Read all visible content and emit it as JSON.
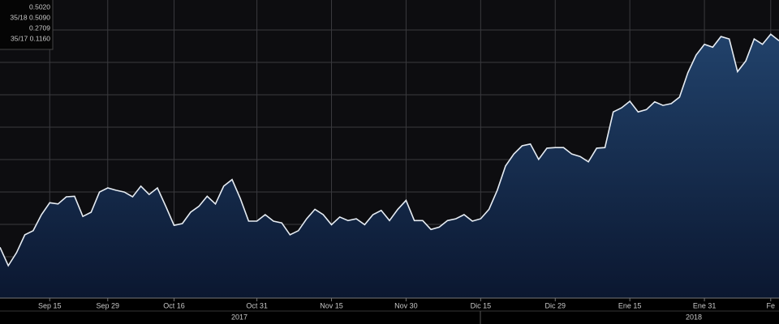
{
  "chart_data": {
    "type": "area",
    "legend_lines": [
      "0.5020",
      "35/18 0.5090",
      "0.2709",
      "35/17 0.1160"
    ],
    "years": [
      "2017",
      "2018"
    ],
    "categories": [
      null,
      null,
      null,
      null,
      null,
      null,
      "Sep 15",
      null,
      null,
      null,
      null,
      null,
      null,
      "Sep 29",
      null,
      null,
      null,
      null,
      null,
      null,
      null,
      "Oct 16",
      null,
      null,
      null,
      null,
      null,
      null,
      null,
      null,
      null,
      "Oct 31",
      null,
      null,
      null,
      null,
      null,
      null,
      null,
      null,
      "Nov 15",
      null,
      null,
      null,
      null,
      null,
      null,
      null,
      null,
      "Nov 30",
      null,
      null,
      null,
      null,
      null,
      null,
      null,
      null,
      "Dic 15",
      null,
      null,
      null,
      null,
      null,
      null,
      null,
      null,
      "Dic 29",
      null,
      null,
      null,
      null,
      null,
      null,
      null,
      null,
      "Ene 15",
      null,
      null,
      null,
      null,
      null,
      null,
      null,
      null,
      "Ene 31",
      null,
      null,
      null,
      null,
      null,
      null,
      null,
      "Fe",
      null
    ],
    "values": [
      0.147,
      0.116,
      0.138,
      0.168,
      0.175,
      0.202,
      0.222,
      0.22,
      0.232,
      0.233,
      0.199,
      0.206,
      0.24,
      0.247,
      0.243,
      0.24,
      0.232,
      0.25,
      0.236,
      0.247,
      0.216,
      0.184,
      0.187,
      0.206,
      0.216,
      0.233,
      0.22,
      0.25,
      0.261,
      0.229,
      0.191,
      0.191,
      0.202,
      0.191,
      0.188,
      0.168,
      0.175,
      0.195,
      0.211,
      0.202,
      0.185,
      0.198,
      0.192,
      0.195,
      0.185,
      0.202,
      0.209,
      0.192,
      0.211,
      0.226,
      0.192,
      0.192,
      0.177,
      0.181,
      0.192,
      0.195,
      0.202,
      0.191,
      0.195,
      0.211,
      0.243,
      0.284,
      0.304,
      0.318,
      0.321,
      0.295,
      0.314,
      0.315,
      0.315,
      0.304,
      0.3,
      0.291,
      0.314,
      0.315,
      0.375,
      0.382,
      0.393,
      0.375,
      0.379,
      0.392,
      0.386,
      0.389,
      0.4,
      0.441,
      0.471,
      0.489,
      0.484,
      0.502,
      0.498,
      0.443,
      0.461,
      0.498,
      0.489,
      0.506,
      0.495
    ],
    "color": "#e6ecf3",
    "ylim": [
      0.0614,
      0.5636
    ],
    "grid": true
  }
}
